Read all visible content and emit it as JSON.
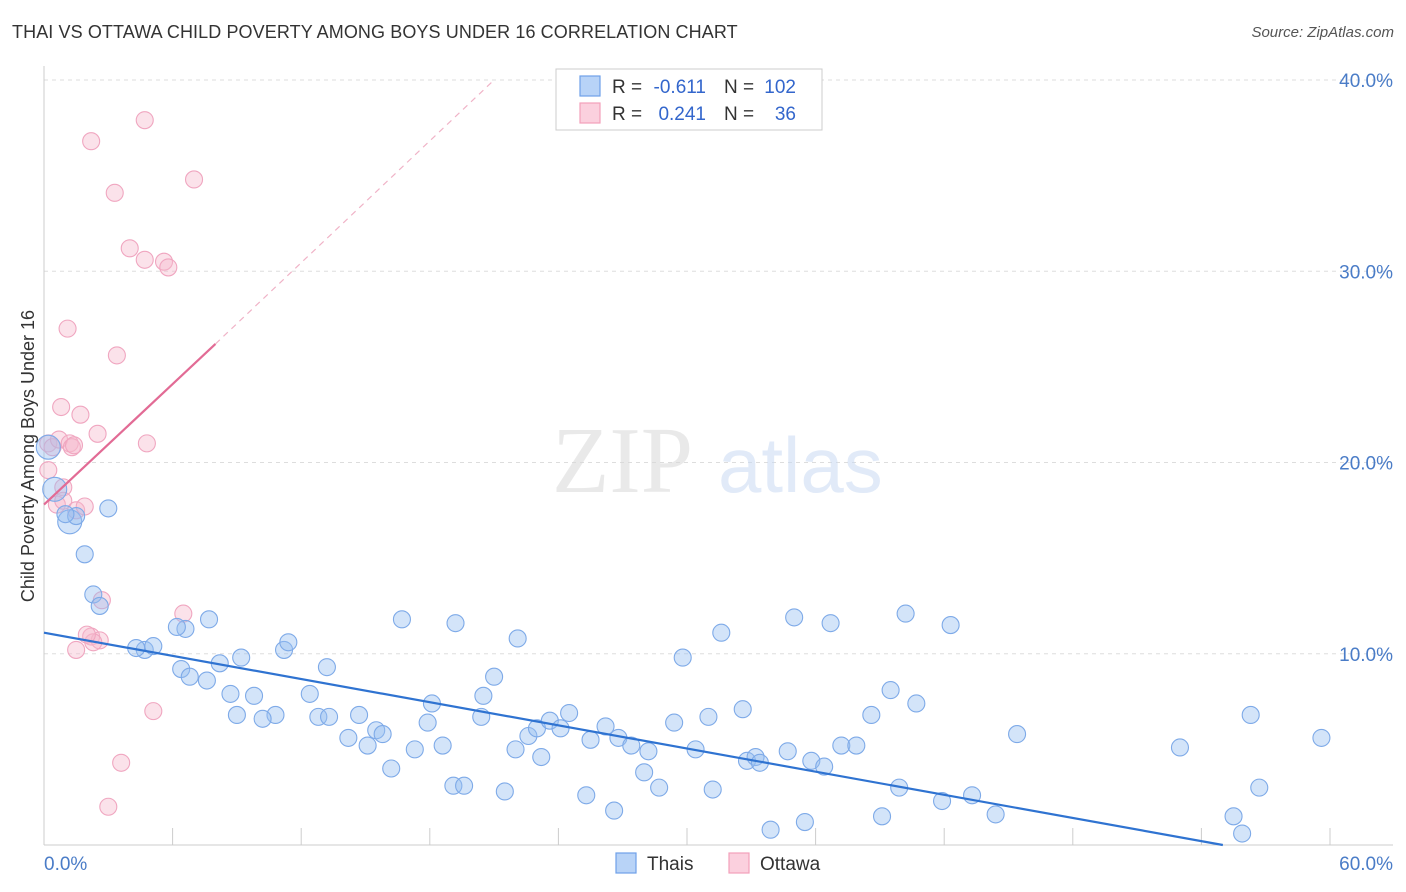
{
  "title": "THAI VS OTTAWA CHILD POVERTY AMONG BOYS UNDER 16 CORRELATION CHART",
  "source": "Source: ZipAtlas.com",
  "watermark": {
    "zip": "ZIP",
    "atlas": "atlas"
  },
  "legend": {
    "r_label": "R =",
    "n_label": "N =",
    "rows": [
      {
        "r": "-0.611",
        "n": "102",
        "color": "#6fa1e8"
      },
      {
        "r": "0.241",
        "n": "36",
        "color": "#f2a0bb"
      }
    ]
  },
  "chart_data": {
    "type": "scatter",
    "title": "THAI VS OTTAWA CHILD POVERTY AMONG BOYS UNDER 16 CORRELATION CHART",
    "xlabel": "",
    "ylabel": "Child Poverty Among Boys Under 16",
    "xlim": [
      0,
      60
    ],
    "ylim": [
      0,
      40
    ],
    "x_tick_labels": [
      "0.0%",
      "60.0%"
    ],
    "y_tick_labels": [
      "40.0%",
      "30.0%",
      "20.0%",
      "10.0%"
    ],
    "y_ticks": [
      40,
      30,
      20,
      10
    ],
    "grid": true,
    "legend_position": "bottom",
    "series": [
      {
        "name": "Thais",
        "color": "#6fa1e8",
        "trend": {
          "x0": 0,
          "y0": 11.1,
          "x1": 55,
          "y1": 0.0
        },
        "points": [
          [
            0.2,
            20.8
          ],
          [
            0.5,
            18.6
          ],
          [
            1.2,
            16.9
          ],
          [
            1.5,
            17.2
          ],
          [
            1.0,
            17.3
          ],
          [
            3.0,
            17.6
          ],
          [
            1.9,
            15.2
          ],
          [
            2.3,
            13.1
          ],
          [
            2.6,
            12.5
          ],
          [
            4.7,
            10.2
          ],
          [
            5.1,
            10.4
          ],
          [
            4.3,
            10.3
          ],
          [
            6.6,
            11.3
          ],
          [
            6.2,
            11.4
          ],
          [
            7.7,
            11.8
          ],
          [
            6.4,
            9.2
          ],
          [
            8.2,
            9.5
          ],
          [
            7.6,
            8.6
          ],
          [
            6.8,
            8.8
          ],
          [
            8.7,
            7.9
          ],
          [
            9.8,
            7.8
          ],
          [
            9.0,
            6.8
          ],
          [
            9.2,
            9.8
          ],
          [
            10.8,
            6.8
          ],
          [
            10.2,
            6.6
          ],
          [
            11.2,
            10.2
          ],
          [
            11.4,
            10.6
          ],
          [
            12.4,
            7.9
          ],
          [
            12.8,
            6.7
          ],
          [
            13.3,
            6.7
          ],
          [
            13.2,
            9.3
          ],
          [
            14.2,
            5.6
          ],
          [
            14.7,
            6.8
          ],
          [
            15.1,
            5.2
          ],
          [
            15.5,
            6.0
          ],
          [
            16.7,
            11.8
          ],
          [
            15.8,
            5.8
          ],
          [
            16.2,
            4.0
          ],
          [
            17.3,
            5.0
          ],
          [
            17.9,
            6.4
          ],
          [
            18.1,
            7.4
          ],
          [
            18.6,
            5.2
          ],
          [
            19.2,
            11.6
          ],
          [
            19.1,
            3.1
          ],
          [
            19.6,
            3.1
          ],
          [
            20.4,
            6.7
          ],
          [
            20.5,
            7.8
          ],
          [
            21.0,
            8.8
          ],
          [
            21.5,
            2.8
          ],
          [
            22.0,
            5.0
          ],
          [
            22.1,
            10.8
          ],
          [
            22.6,
            5.7
          ],
          [
            23.0,
            6.1
          ],
          [
            23.2,
            4.6
          ],
          [
            23.6,
            6.5
          ],
          [
            24.5,
            6.9
          ],
          [
            24.1,
            6.1
          ],
          [
            25.3,
            2.6
          ],
          [
            25.5,
            5.5
          ],
          [
            26.2,
            6.2
          ],
          [
            26.8,
            5.6
          ],
          [
            26.6,
            1.8
          ],
          [
            27.4,
            5.2
          ],
          [
            28.0,
            3.8
          ],
          [
            28.2,
            4.9
          ],
          [
            28.7,
            3.0
          ],
          [
            29.4,
            6.4
          ],
          [
            29.8,
            9.8
          ],
          [
            30.4,
            5.0
          ],
          [
            31.0,
            6.7
          ],
          [
            31.2,
            2.9
          ],
          [
            31.6,
            11.1
          ],
          [
            32.6,
            7.1
          ],
          [
            32.8,
            4.4
          ],
          [
            33.2,
            4.6
          ],
          [
            33.4,
            4.3
          ],
          [
            33.9,
            0.8
          ],
          [
            34.7,
            4.9
          ],
          [
            35.0,
            11.9
          ],
          [
            35.5,
            1.2
          ],
          [
            35.8,
            4.4
          ],
          [
            36.4,
            4.1
          ],
          [
            36.7,
            11.6
          ],
          [
            37.2,
            5.2
          ],
          [
            37.9,
            5.2
          ],
          [
            38.6,
            6.8
          ],
          [
            39.1,
            1.5
          ],
          [
            39.5,
            8.1
          ],
          [
            39.9,
            3.0
          ],
          [
            40.2,
            12.1
          ],
          [
            40.7,
            7.4
          ],
          [
            41.9,
            2.3
          ],
          [
            42.3,
            11.5
          ],
          [
            43.3,
            2.6
          ],
          [
            44.4,
            1.6
          ],
          [
            45.4,
            5.8
          ],
          [
            53.0,
            5.1
          ],
          [
            55.5,
            1.5
          ],
          [
            56.3,
            6.8
          ],
          [
            56.7,
            3.0
          ],
          [
            59.6,
            5.6
          ],
          [
            55.9,
            0.6
          ]
        ]
      },
      {
        "name": "Ottawa",
        "color": "#f2a0bb",
        "trend": {
          "x0": 0,
          "y0": 17.8,
          "x1": 8.0,
          "y1": 26.2,
          "dashed_to": {
            "x": 21.0,
            "y": 40.0
          }
        },
        "points": [
          [
            0.2,
            21.0
          ],
          [
            0.4,
            20.8
          ],
          [
            0.2,
            19.6
          ],
          [
            0.6,
            17.8
          ],
          [
            0.9,
            18.7
          ],
          [
            0.7,
            21.2
          ],
          [
            0.9,
            18.0
          ],
          [
            0.8,
            22.9
          ],
          [
            1.1,
            27.0
          ],
          [
            1.2,
            21.0
          ],
          [
            1.3,
            20.8
          ],
          [
            1.4,
            20.9
          ],
          [
            1.5,
            17.5
          ],
          [
            1.7,
            22.5
          ],
          [
            1.9,
            17.7
          ],
          [
            2.2,
            36.8
          ],
          [
            2.5,
            21.5
          ],
          [
            2.7,
            12.8
          ],
          [
            2.2,
            10.9
          ],
          [
            2.6,
            10.7
          ],
          [
            3.3,
            34.1
          ],
          [
            3.4,
            25.6
          ],
          [
            4.0,
            31.2
          ],
          [
            4.7,
            30.6
          ],
          [
            4.7,
            37.9
          ],
          [
            4.8,
            21.0
          ],
          [
            5.6,
            30.5
          ],
          [
            5.8,
            30.2
          ],
          [
            6.5,
            12.1
          ],
          [
            7.0,
            34.8
          ],
          [
            3.6,
            4.3
          ],
          [
            3.0,
            2.0
          ],
          [
            5.1,
            7.0
          ],
          [
            1.5,
            10.2
          ],
          [
            2.3,
            10.6
          ],
          [
            2.0,
            11.0
          ]
        ]
      }
    ]
  }
}
